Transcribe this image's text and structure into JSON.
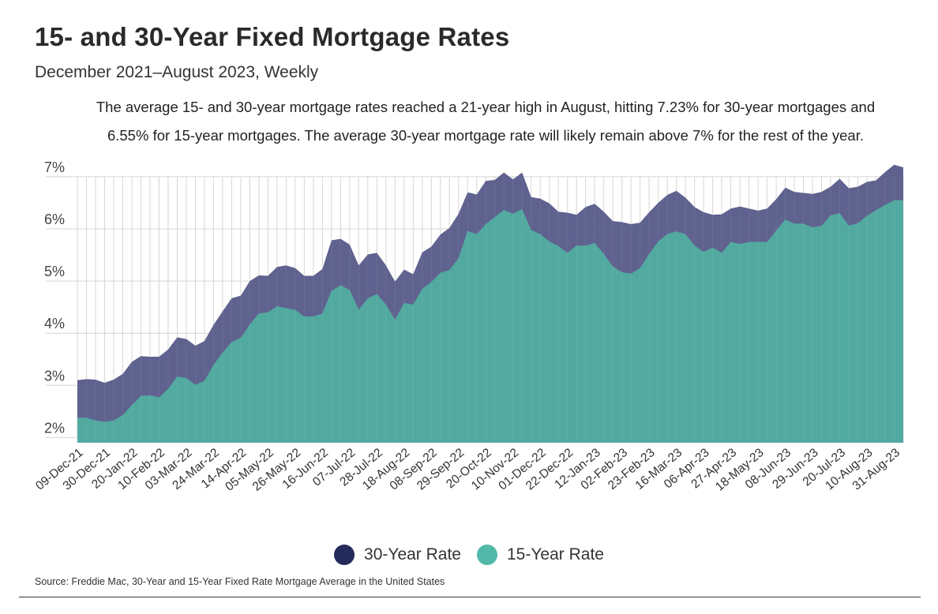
{
  "chart_data": {
    "type": "area",
    "title": "15- and 30-Year Fixed Mortgage Rates",
    "subtitle": "December 2021–August 2023, Weekly",
    "annotation": "The average 15- and 30-year mortgage rates reached a 21-year high in August, hitting 7.23% for 30-year mortgages and 6.55% for 15-year mortgages. The average 30-year mortgage rate will likely remain above 7% for the rest of the year.",
    "source": "Source:  Freddie Mac, 30-Year  and 15-Year Fixed Rate Mortgage Average in the United States",
    "ylim": [
      1.9,
      7.15
    ],
    "yticks": [
      2,
      3,
      4,
      5,
      6,
      7
    ],
    "ytick_labels": [
      "2%",
      "3%",
      "4%",
      "5%",
      "6%",
      "7%"
    ],
    "x_tick_labels": [
      "09-Dec-21",
      "30-Dec-21",
      "20-Jan-22",
      "10-Feb-22",
      "03-Mar-22",
      "24-Mar-22",
      "14-Apr-22",
      "05-May-22",
      "26-May-22",
      "16-Jun-22",
      "07-Jul-22",
      "28-Jul-22",
      "18-Aug-22",
      "08-Sep-22",
      "29-Sep-22",
      "20-Oct-22",
      "10-Nov-22",
      "01-Dec-22",
      "22-Dec-22",
      "12-Jan-23",
      "02-Feb-23",
      "23-Feb-23",
      "16-Mar-23",
      "06-Apr-23",
      "27-Apr-23",
      "18-May-23",
      "08-Jun-23",
      "29-Jun-23",
      "20-Jul-23",
      "10-Aug-23",
      "31-Aug-23"
    ],
    "x_tick_step_weeks": 3,
    "legend": [
      "30-Year Rate",
      "15-Year Rate"
    ],
    "series": [
      {
        "name": "30-Year Rate",
        "color": "#5c5f8c",
        "values": [
          3.1,
          3.12,
          3.11,
          3.05,
          3.11,
          3.22,
          3.45,
          3.56,
          3.55,
          3.55,
          3.69,
          3.92,
          3.89,
          3.76,
          3.85,
          4.16,
          4.42,
          4.67,
          4.72,
          5.0,
          5.11,
          5.1,
          5.27,
          5.3,
          5.25,
          5.1,
          5.1,
          5.23,
          5.78,
          5.81,
          5.7,
          5.3,
          5.51,
          5.54,
          5.3,
          4.99,
          5.22,
          5.13,
          5.55,
          5.66,
          5.89,
          6.02,
          6.29,
          6.7,
          6.66,
          6.92,
          6.94,
          7.08,
          6.95,
          7.08,
          6.61,
          6.58,
          6.49,
          6.33,
          6.31,
          6.27,
          6.42,
          6.48,
          6.33,
          6.15,
          6.13,
          6.09,
          6.12,
          6.32,
          6.5,
          6.65,
          6.73,
          6.6,
          6.42,
          6.32,
          6.27,
          6.28,
          6.39,
          6.43,
          6.39,
          6.35,
          6.39,
          6.57,
          6.79,
          6.71,
          6.69,
          6.67,
          6.71,
          6.81,
          6.96,
          6.78,
          6.81,
          6.9,
          6.93,
          7.09,
          7.23,
          7.18
        ]
      },
      {
        "name": "15-Year Rate",
        "color": "#52a9a0",
        "values": [
          2.38,
          2.38,
          2.33,
          2.3,
          2.33,
          2.43,
          2.62,
          2.8,
          2.81,
          2.77,
          2.93,
          3.17,
          3.14,
          3.01,
          3.09,
          3.39,
          3.63,
          3.83,
          3.91,
          4.17,
          4.38,
          4.4,
          4.52,
          4.48,
          4.45,
          4.32,
          4.32,
          4.38,
          4.81,
          4.92,
          4.83,
          4.45,
          4.67,
          4.75,
          4.55,
          4.26,
          4.58,
          4.55,
          4.85,
          4.98,
          5.16,
          5.21,
          5.44,
          5.96,
          5.9,
          6.09,
          6.23,
          6.36,
          6.29,
          6.38,
          5.98,
          5.9,
          5.76,
          5.67,
          5.54,
          5.68,
          5.68,
          5.73,
          5.52,
          5.28,
          5.17,
          5.14,
          5.25,
          5.52,
          5.76,
          5.9,
          5.95,
          5.9,
          5.68,
          5.56,
          5.64,
          5.54,
          5.75,
          5.71,
          5.75,
          5.75,
          5.75,
          5.97,
          6.18,
          6.1,
          6.1,
          6.03,
          6.06,
          6.26,
          6.3,
          6.06,
          6.11,
          6.25,
          6.36,
          6.46,
          6.55,
          6.55
        ]
      }
    ]
  }
}
